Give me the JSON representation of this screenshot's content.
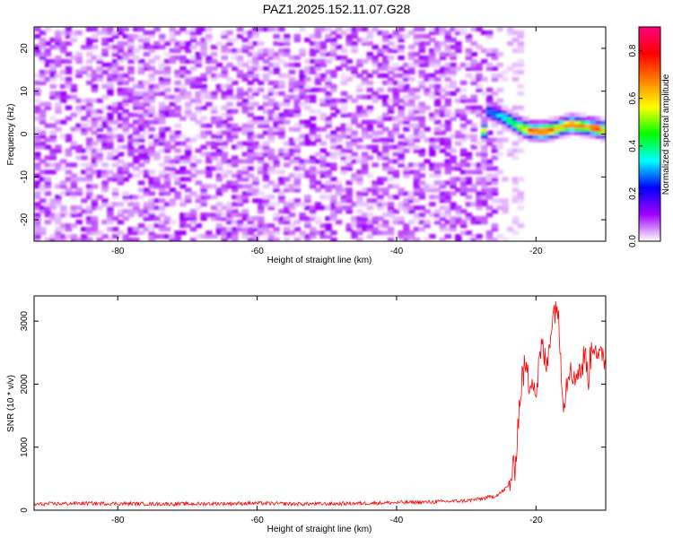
{
  "title": "PAZ1.2025.152.11.07.G28",
  "chart_data": [
    {
      "type": "heatmap",
      "xlabel": "Height of straight line (km)",
      "ylabel": "Frequency (Hz)",
      "xlim": [
        -92,
        -10
      ],
      "ylim": [
        -25,
        25
      ],
      "xticks": [
        -80,
        -60,
        -40,
        -20
      ],
      "yticks": [
        -20,
        -10,
        0,
        10,
        20
      ],
      "colorbar": {
        "label": "Normalized spectral amplitude",
        "range": [
          0.0,
          0.9
        ],
        "ticks": [
          0.0,
          0.2,
          0.4,
          0.6,
          0.8
        ],
        "colormap": [
          "#ffffff",
          "#a000ff",
          "#0000ff",
          "#00ffff",
          "#00ff00",
          "#ffff00",
          "#ff8000",
          "#ff0000",
          "#ff0080"
        ]
      },
      "features": {
        "noise_x_range": [
          -92,
          -26
        ],
        "noise_amplitude_range": [
          0.0,
          0.12
        ],
        "signal_track": [
          {
            "x": -27,
            "y": 5.5,
            "amplitude": 0.3
          },
          {
            "x": -25,
            "y": 4.5,
            "amplitude": 0.4
          },
          {
            "x": -23,
            "y": 2.5,
            "amplitude": 0.5
          },
          {
            "x": -21,
            "y": 1.0,
            "amplitude": 0.8
          },
          {
            "x": -19,
            "y": 0.8,
            "amplitude": 0.9
          },
          {
            "x": -17,
            "y": 1.5,
            "amplitude": 0.75
          },
          {
            "x": -15,
            "y": 2.5,
            "amplitude": 0.8
          },
          {
            "x": -13,
            "y": 2.0,
            "amplitude": 0.7
          },
          {
            "x": -11,
            "y": 1.5,
            "amplitude": 0.9
          },
          {
            "x": -10,
            "y": 1.0,
            "amplitude": 0.6
          }
        ]
      }
    },
    {
      "type": "line",
      "xlabel": "Height of straight line (km)",
      "ylabel": "SNR (10 * v/v)",
      "xlim": [
        -92,
        -10
      ],
      "ylim": [
        0,
        3400
      ],
      "xticks": [
        -80,
        -60,
        -40,
        -20
      ],
      "yticks": [
        0,
        1000,
        2000,
        3000
      ],
      "color": "#ff0000",
      "series": [
        {
          "x": [
            -92,
            -90,
            -85,
            -80,
            -75,
            -70,
            -65,
            -60,
            -55,
            -50,
            -45,
            -40,
            -35,
            -30,
            -28,
            -26,
            -25,
            -24,
            -23,
            -22.5,
            -22,
            -21.5,
            -21,
            -20.5,
            -20,
            -19.5,
            -19,
            -18.5,
            -18,
            -17.5,
            -17,
            -16.5,
            -16,
            -15.5,
            -15,
            -14.5,
            -14,
            -13.5,
            -13,
            -12.5,
            -12,
            -11.5,
            -11,
            -10.5,
            -10
          ],
          "y": [
            90,
            100,
            110,
            105,
            100,
            100,
            105,
            110,
            100,
            100,
            110,
            120,
            130,
            150,
            180,
            220,
            280,
            380,
            700,
            1500,
            2100,
            2300,
            2000,
            2200,
            1800,
            2400,
            2600,
            2200,
            2800,
            3100,
            3350,
            2500,
            1700,
            2100,
            2400,
            2000,
            2300,
            2200,
            2500,
            2100,
            2600,
            2700,
            2300,
            2500,
            2400
          ]
        }
      ]
    }
  ]
}
